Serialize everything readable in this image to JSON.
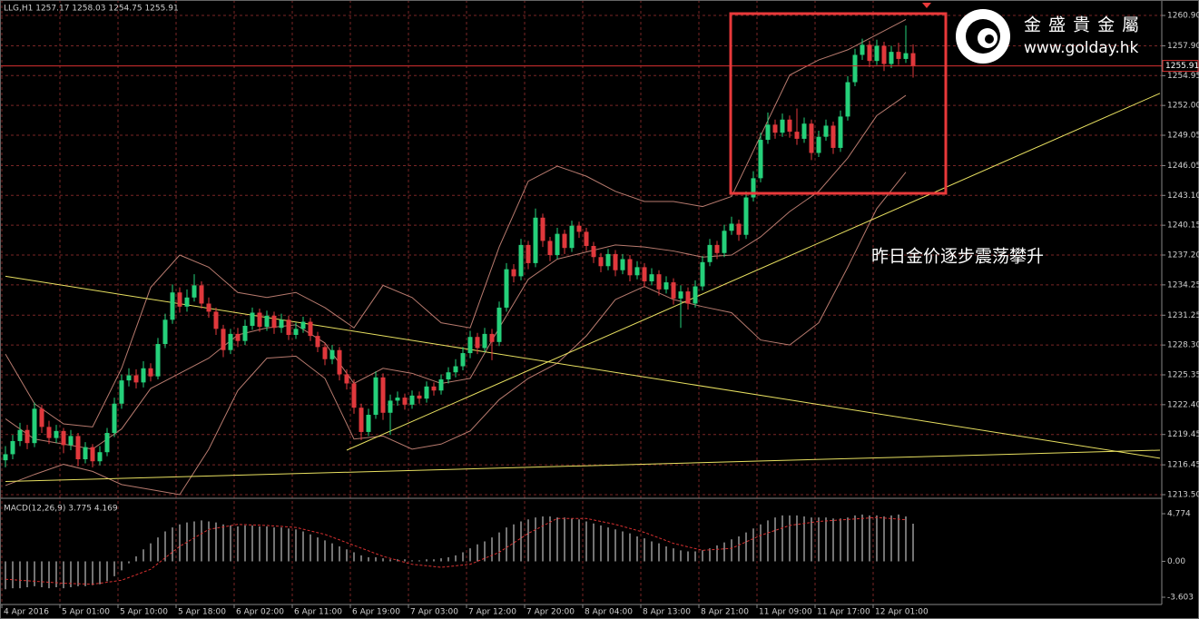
{
  "logo": {
    "name": "金 盛 貴 金 屬",
    "url": "www.golday.hk"
  },
  "chart_data": [
    {
      "type": "candlestick",
      "title": "LLG,H1 1257.17 1258.03 1254.75 1255.91",
      "annotation": "昨日金价逐步震荡攀升",
      "open": [
        1216.9,
        1217.5,
        1218.8,
        1219.9,
        1218.6,
        1222.0,
        1220.2,
        1219.1,
        1219.8,
        1218.4,
        1219.3,
        1217.0,
        1218.2,
        1216.8,
        1217.7,
        1219.6,
        1222.5,
        1224.8,
        1225.3,
        1224.6,
        1226.0,
        1225.2,
        1228.4,
        1230.8,
        1233.5,
        1232.1,
        1233.0,
        1234.2,
        1232.4,
        1231.6,
        1229.9,
        1227.8,
        1229.4,
        1228.7,
        1230.2,
        1231.5,
        1230.1,
        1231.2,
        1230.0,
        1230.8,
        1229.3,
        1229.9,
        1230.6,
        1229.2,
        1228.1,
        1226.9,
        1227.8,
        1225.4,
        1224.5,
        1222.1,
        1219.7,
        1221.4,
        1225.1,
        1221.6,
        1222.8,
        1223.1,
        1222.4,
        1223.3,
        1223.0,
        1224.2,
        1223.8,
        1224.9,
        1225.6,
        1226.2,
        1227.5,
        1229.1,
        1228.0,
        1229.4,
        1228.6,
        1232.0,
        1235.8,
        1235.1,
        1238.2,
        1236.4,
        1240.9,
        1238.6,
        1237.2,
        1239.3,
        1237.9,
        1240.1,
        1239.5,
        1238.1,
        1237.0,
        1236.1,
        1237.3,
        1235.7,
        1236.8,
        1235.2,
        1236.0,
        1234.6,
        1235.3,
        1233.8,
        1234.5,
        1232.9,
        1233.6,
        1232.4,
        1234.1,
        1236.5,
        1238.2,
        1237.4,
        1239.6,
        1240.3,
        1239.2,
        1242.9,
        1244.8,
        1248.6,
        1250.1,
        1249.3,
        1250.6,
        1249.4,
        1248.7,
        1250.2,
        1247.3,
        1248.9,
        1250.0,
        1247.8,
        1250.9,
        1254.3,
        1257.0,
        1258.0,
        1256.4,
        1257.9,
        1256.1,
        1257.3,
        1256.6,
        1257.17
      ],
      "high": [
        1218.3,
        1219.4,
        1220.6,
        1220.4,
        1222.6,
        1222.4,
        1220.8,
        1220.4,
        1220.1,
        1219.9,
        1219.6,
        1218.7,
        1218.5,
        1218.3,
        1220.1,
        1223.1,
        1225.4,
        1226.0,
        1225.9,
        1226.7,
        1226.5,
        1229.0,
        1231.4,
        1234.3,
        1234.0,
        1233.8,
        1235.3,
        1234.6,
        1233.0,
        1232.0,
        1230.3,
        1229.9,
        1230.0,
        1230.8,
        1232.0,
        1231.9,
        1231.7,
        1231.6,
        1231.4,
        1231.2,
        1230.5,
        1231.1,
        1231.0,
        1229.6,
        1228.5,
        1228.3,
        1228.1,
        1225.9,
        1224.9,
        1222.5,
        1222.0,
        1225.7,
        1225.5,
        1223.4,
        1223.7,
        1223.5,
        1223.8,
        1223.7,
        1224.7,
        1224.6,
        1225.4,
        1226.1,
        1226.9,
        1228.1,
        1229.7,
        1229.5,
        1230.0,
        1229.9,
        1232.6,
        1236.4,
        1236.3,
        1238.8,
        1238.6,
        1241.8,
        1241.3,
        1239.0,
        1239.9,
        1239.7,
        1240.6,
        1240.5,
        1239.9,
        1238.5,
        1237.4,
        1237.8,
        1237.7,
        1237.3,
        1237.2,
        1236.6,
        1236.4,
        1235.9,
        1235.7,
        1235.1,
        1234.9,
        1234.2,
        1234.0,
        1234.7,
        1237.1,
        1238.8,
        1238.6,
        1240.2,
        1241.0,
        1240.7,
        1243.5,
        1245.5,
        1249.3,
        1251.3,
        1250.6,
        1251.2,
        1251.0,
        1251.7,
        1250.8,
        1250.6,
        1249.5,
        1250.6,
        1250.4,
        1251.5,
        1254.9,
        1257.6,
        1258.6,
        1258.4,
        1258.5,
        1258.3,
        1257.9,
        1258.2,
        1259.9,
        1258.03
      ],
      "low": [
        1216.2,
        1217.0,
        1218.3,
        1218.0,
        1218.2,
        1219.6,
        1218.5,
        1218.6,
        1217.6,
        1217.9,
        1216.3,
        1216.6,
        1216.2,
        1216.4,
        1217.3,
        1219.2,
        1222.0,
        1224.2,
        1224.0,
        1224.1,
        1224.7,
        1224.9,
        1228.0,
        1230.4,
        1231.5,
        1231.6,
        1232.6,
        1231.9,
        1231.0,
        1229.3,
        1227.1,
        1227.4,
        1228.1,
        1228.3,
        1229.8,
        1229.6,
        1229.7,
        1229.4,
        1229.5,
        1228.8,
        1228.9,
        1229.5,
        1228.7,
        1227.6,
        1226.3,
        1226.4,
        1224.8,
        1223.9,
        1221.5,
        1218.9,
        1219.3,
        1221.0,
        1220.9,
        1219.4,
        1222.3,
        1221.9,
        1222.0,
        1222.5,
        1222.6,
        1223.3,
        1223.4,
        1224.5,
        1225.1,
        1225.8,
        1227.0,
        1227.4,
        1227.6,
        1226.8,
        1228.2,
        1231.6,
        1234.5,
        1234.7,
        1235.8,
        1236.0,
        1238.0,
        1236.6,
        1236.8,
        1237.3,
        1237.5,
        1238.9,
        1237.6,
        1236.4,
        1235.5,
        1235.7,
        1235.1,
        1235.3,
        1234.6,
        1234.8,
        1234.0,
        1234.2,
        1233.2,
        1233.4,
        1232.3,
        1230.0,
        1231.8,
        1232.0,
        1233.7,
        1236.1,
        1236.8,
        1237.0,
        1239.2,
        1238.6,
        1238.8,
        1242.5,
        1244.4,
        1248.2,
        1248.7,
        1248.9,
        1248.8,
        1248.1,
        1248.3,
        1246.6,
        1246.9,
        1248.5,
        1247.2,
        1247.4,
        1250.5,
        1253.9,
        1256.5,
        1255.8,
        1256.0,
        1255.4,
        1255.7,
        1256.0,
        1256.2,
        1254.75
      ],
      "close": [
        1217.5,
        1218.8,
        1219.9,
        1218.6,
        1222.0,
        1220.2,
        1219.1,
        1219.8,
        1218.4,
        1219.3,
        1217.0,
        1218.2,
        1216.8,
        1217.7,
        1219.6,
        1222.5,
        1224.8,
        1225.3,
        1224.6,
        1226.0,
        1225.2,
        1228.4,
        1230.8,
        1233.5,
        1232.1,
        1233.0,
        1234.2,
        1232.4,
        1231.6,
        1229.9,
        1227.8,
        1229.4,
        1228.7,
        1230.2,
        1231.5,
        1230.1,
        1231.2,
        1230.0,
        1230.8,
        1229.3,
        1229.9,
        1230.6,
        1229.2,
        1228.1,
        1226.9,
        1227.8,
        1225.4,
        1224.5,
        1222.1,
        1219.7,
        1221.4,
        1225.1,
        1221.6,
        1222.8,
        1223.1,
        1222.4,
        1223.3,
        1223.0,
        1224.2,
        1223.8,
        1224.9,
        1225.6,
        1226.2,
        1227.5,
        1229.1,
        1228.0,
        1229.4,
        1228.6,
        1232.0,
        1235.8,
        1235.1,
        1238.2,
        1236.4,
        1240.9,
        1238.6,
        1237.2,
        1239.3,
        1237.9,
        1240.1,
        1239.5,
        1238.1,
        1237.0,
        1236.1,
        1237.3,
        1235.7,
        1236.8,
        1235.2,
        1236.0,
        1234.6,
        1235.3,
        1233.8,
        1234.5,
        1232.9,
        1233.6,
        1232.4,
        1234.1,
        1236.5,
        1238.2,
        1237.4,
        1239.6,
        1240.3,
        1239.2,
        1242.9,
        1244.8,
        1248.6,
        1250.1,
        1249.3,
        1250.6,
        1249.4,
        1248.7,
        1250.2,
        1247.3,
        1248.9,
        1250.0,
        1247.8,
        1250.9,
        1254.3,
        1257.0,
        1258.0,
        1256.4,
        1257.9,
        1256.1,
        1257.3,
        1256.6,
        1257.17,
        1255.91
      ],
      "up_color": "#25d07a",
      "down_color": "#e0383c",
      "bands": {
        "color": "#b77a6e",
        "x": [
          0,
          4,
          8,
          12,
          16,
          20,
          24,
          28,
          32,
          36,
          40,
          44,
          48,
          52,
          56,
          60,
          64,
          68,
          72,
          76,
          80,
          84,
          88,
          92,
          96,
          100,
          104,
          108,
          112,
          116,
          120,
          124
        ],
        "series": [
          {
            "values": [
              1227.4,
              1222.5,
              1220.5,
              1220.2,
              1226.0,
              1234.0,
              1237.2,
              1236.0,
              1233.5,
              1233.0,
              1233.5,
              1232.0,
              1230.0,
              1234.2,
              1233.0,
              1230.5,
              1230.0,
              1238.0,
              1244.5,
              1246.0,
              1245.0,
              1243.5,
              1242.5,
              1242.5,
              1242.0,
              1243.0,
              1249.0,
              1255.0,
              1256.5,
              1257.5,
              1259.0,
              1260.5
            ]
          },
          {
            "values": [
              1221.0,
              1219.0,
              1218.5,
              1218.0,
              1220.0,
              1224.0,
              1225.5,
              1227.0,
              1229.3,
              1230.0,
              1230.3,
              1228.5,
              1224.5,
              1226.0,
              1225.5,
              1224.5,
              1225.0,
              1230.0,
              1234.8,
              1236.8,
              1237.5,
              1238.2,
              1238.0,
              1237.6,
              1237.0,
              1237.2,
              1239.0,
              1241.5,
              1243.5,
              1246.8,
              1251.0,
              1253.0
            ]
          },
          {
            "values": [
              1214.4,
              1215.5,
              1216.5,
              1215.8,
              1214.5,
              1214.0,
              1213.5,
              1218.0,
              1223.8,
              1227.0,
              1227.2,
              1225.0,
              1219.0,
              1219.3,
              1218.0,
              1218.5,
              1219.8,
              1222.9,
              1225.0,
              1226.5,
              1229.2,
              1232.8,
              1234.1,
              1232.8,
              1232.1,
              1231.5,
              1228.8,
              1228.3,
              1230.5,
              1236.0,
              1241.8,
              1245.4
            ]
          }
        ]
      },
      "trendlines": {
        "color": "#e8e060",
        "lines": [
          {
            "x": [
              0,
              159
            ],
            "values": [
              1235.1,
              1217.1
            ]
          },
          {
            "x": [
              47,
              159
            ],
            "values": [
              1217.9,
              1253.2
            ]
          },
          {
            "x": [
              0,
              159
            ],
            "values": [
              1214.8,
              1217.9
            ]
          }
        ]
      },
      "ylim": [
        1213.23,
        1262.16
      ],
      "yticks": [
        {
          "value": 1260.9,
          "label": "1260.90"
        },
        {
          "value": 1257.9,
          "label": "1257.90"
        },
        {
          "value": 1254.95,
          "label": "1254.95"
        },
        {
          "value": 1252,
          "label": "1252.00"
        },
        {
          "value": 1249.05,
          "label": "1249.05"
        },
        {
          "value": 1246.05,
          "label": "1246.05"
        },
        {
          "value": 1243.1,
          "label": "1243.10"
        },
        {
          "value": 1240.15,
          "label": "1240.15"
        },
        {
          "value": 1237.2,
          "label": "1237.20"
        },
        {
          "value": 1234.25,
          "label": "1234.25"
        },
        {
          "value": 1231.25,
          "label": "1231.25"
        },
        {
          "value": 1228.3,
          "label": "1228.30"
        },
        {
          "value": 1225.35,
          "label": "1225.35"
        },
        {
          "value": 1222.4,
          "label": "1222.40"
        },
        {
          "value": 1219.45,
          "label": "1219.45"
        },
        {
          "value": 1216.45,
          "label": "1216.45"
        },
        {
          "value": 1213.5,
          "label": "1213.50"
        }
      ],
      "xticks": [
        {
          "value": 0,
          "label": "4 Apr 2016"
        },
        {
          "value": 8,
          "label": "5 Apr 01:00"
        },
        {
          "value": 16,
          "label": "5 Apr 10:00"
        },
        {
          "value": 24,
          "label": "5 Apr 18:00"
        },
        {
          "value": 32,
          "label": "6 Apr 02:00"
        },
        {
          "value": 40,
          "label": "6 Apr 11:00"
        },
        {
          "value": 48,
          "label": "6 Apr 19:00"
        },
        {
          "value": 56,
          "label": "7 Apr 03:00"
        },
        {
          "value": 64,
          "label": "7 Apr 12:00"
        },
        {
          "value": 72,
          "label": "7 Apr 20:00"
        },
        {
          "value": 80,
          "label": "8 Apr 04:00"
        },
        {
          "value": 88,
          "label": "8 Apr 13:00"
        },
        {
          "value": 96,
          "label": "8 Apr 21:00"
        },
        {
          "value": 104,
          "label": "11 Apr 09:00"
        },
        {
          "value": 112,
          "label": "11 Apr 17:00"
        },
        {
          "value": 120,
          "label": "12 Apr 01:00"
        }
      ],
      "grid": true,
      "grid_color": "#7a2626",
      "last_price_color": "#d83030"
    },
    {
      "type": "bar",
      "title": "MACD(12,26,9) 3.775 4.169",
      "color": "#e6e6e6",
      "values": [
        -2.8,
        -2.7,
        -2.7,
        -2.6,
        -2.5,
        -2.6,
        -2.7,
        -2.6,
        -2.7,
        -2.6,
        -2.5,
        -2.5,
        -2.4,
        -2.3,
        -2.0,
        -1.5,
        -0.9,
        -0.2,
        0.5,
        1.2,
        1.8,
        2.4,
        3.0,
        3.4,
        3.7,
        3.9,
        4.0,
        4.1,
        4.0,
        3.9,
        3.7,
        3.6,
        3.5,
        3.6,
        3.6,
        3.5,
        3.5,
        3.4,
        3.4,
        3.3,
        3.2,
        3.0,
        2.7,
        2.4,
        2.1,
        1.8,
        1.5,
        1.2,
        0.9,
        0.6,
        0.4,
        0.4,
        0.3,
        0.2,
        0.2,
        0.2,
        0.1,
        0.1,
        0.2,
        0.2,
        0.3,
        0.4,
        0.6,
        0.9,
        1.3,
        1.7,
        2.0,
        2.4,
        2.9,
        3.4,
        3.7,
        4.0,
        4.2,
        4.4,
        4.5,
        4.5,
        4.4,
        4.4,
        4.3,
        4.2,
        4.0,
        3.8,
        3.6,
        3.4,
        3.2,
        3.0,
        2.8,
        2.5,
        2.3,
        2.0,
        1.8,
        1.5,
        1.3,
        1.1,
        1.0,
        1.0,
        1.1,
        1.3,
        1.6,
        1.9,
        2.2,
        2.5,
        2.9,
        3.3,
        3.7,
        4.1,
        4.4,
        4.6,
        4.6,
        4.6,
        4.5,
        4.4,
        4.4,
        4.4,
        4.3,
        4.3,
        4.4,
        4.6,
        4.7,
        4.6,
        4.6,
        4.5,
        4.6,
        4.7,
        4.5,
        3.775
      ],
      "signal": {
        "color": "#d83030",
        "x": [
          0,
          4,
          8,
          12,
          16,
          20,
          24,
          28,
          32,
          36,
          40,
          44,
          48,
          52,
          56,
          60,
          64,
          68,
          72,
          76,
          80,
          84,
          88,
          92,
          96,
          100,
          104,
          108,
          112,
          116,
          120,
          124
        ],
        "values": [
          -1.8,
          -2.0,
          -2.2,
          -2.3,
          -1.9,
          -0.8,
          1.5,
          3.2,
          3.7,
          3.6,
          3.4,
          2.7,
          1.6,
          0.5,
          -0.3,
          -0.6,
          -0.3,
          0.9,
          2.8,
          4.3,
          4.3,
          3.7,
          2.9,
          1.8,
          1.1,
          1.3,
          2.6,
          3.6,
          4.0,
          4.2,
          4.4,
          4.169
        ]
      },
      "ylim": [
        -4.33,
        6.14
      ],
      "yticks": [
        4.774,
        {
          "value": 0,
          "label": "0.00"
        },
        -3.603
      ]
    }
  ]
}
